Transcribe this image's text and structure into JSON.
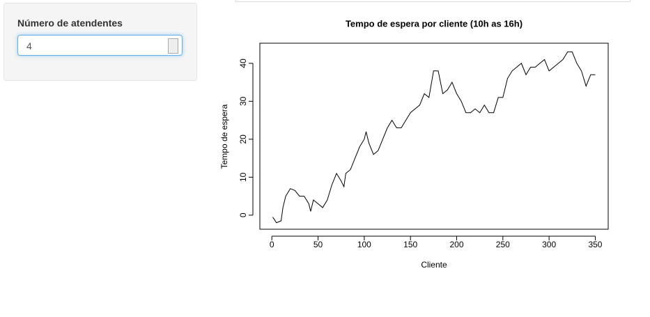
{
  "sidebar": {
    "label": "Número de atendentes",
    "input_value": "4"
  },
  "chart_data": {
    "type": "line",
    "title": "Tempo de espera por cliente (10h as 16h)",
    "x_label": "Cliente",
    "y_label": "Tempo de espera",
    "color": "#000000",
    "x": [
      1,
      5,
      10,
      12,
      15,
      20,
      25,
      30,
      35,
      40,
      42,
      45,
      50,
      55,
      60,
      65,
      70,
      75,
      78,
      80,
      85,
      90,
      95,
      100,
      102,
      105,
      110,
      115,
      120,
      125,
      130,
      135,
      140,
      145,
      150,
      155,
      160,
      165,
      170,
      175,
      180,
      185,
      190,
      195,
      200,
      205,
      210,
      215,
      220,
      225,
      230,
      235,
      240,
      245,
      250,
      255,
      260,
      265,
      270,
      275,
      280,
      285,
      290,
      295,
      300,
      305,
      310,
      315,
      320,
      325,
      330,
      335,
      340,
      345,
      350
    ],
    "values": [
      -0.5,
      -2,
      -1.5,
      2,
      5,
      7,
      6.5,
      5,
      5,
      3,
      1,
      4,
      3,
      2,
      4,
      8,
      11,
      9,
      7.5,
      11,
      12,
      15,
      18,
      20,
      22,
      19,
      16,
      17,
      20,
      23,
      25,
      23,
      23,
      25,
      27,
      28,
      29,
      32,
      31,
      38,
      38,
      32,
      33,
      35,
      32,
      30,
      27,
      27,
      28,
      27,
      29,
      27,
      27,
      31,
      31,
      36,
      38,
      39,
      40,
      37,
      39,
      39,
      40,
      41,
      38,
      39,
      40,
      41,
      43,
      43,
      40,
      38,
      34,
      37,
      37
    ],
    "xlim": [
      -12.96,
      363.96
    ],
    "ylim": [
      -3.7,
      45.3
    ],
    "xticks": [
      0,
      50,
      100,
      150,
      200,
      250,
      300,
      350
    ],
    "yticks": [
      0,
      10,
      20,
      30,
      40
    ],
    "grid": false
  }
}
